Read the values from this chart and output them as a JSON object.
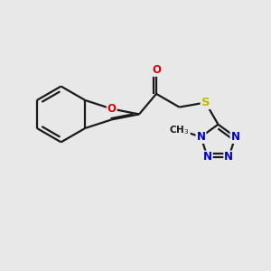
{
  "bg_color": "#e8e8e8",
  "bond_color": "#1a1a1a",
  "bond_width": 1.6,
  "atom_colors": {
    "O": "#dd0000",
    "N": "#0000cc",
    "S": "#bbbb00",
    "C": "#1a1a1a"
  },
  "figsize": [
    3.0,
    3.0
  ],
  "dpi": 100,
  "xlim": [
    0,
    10
  ],
  "ylim": [
    0,
    10
  ],
  "font_size": 8.5
}
